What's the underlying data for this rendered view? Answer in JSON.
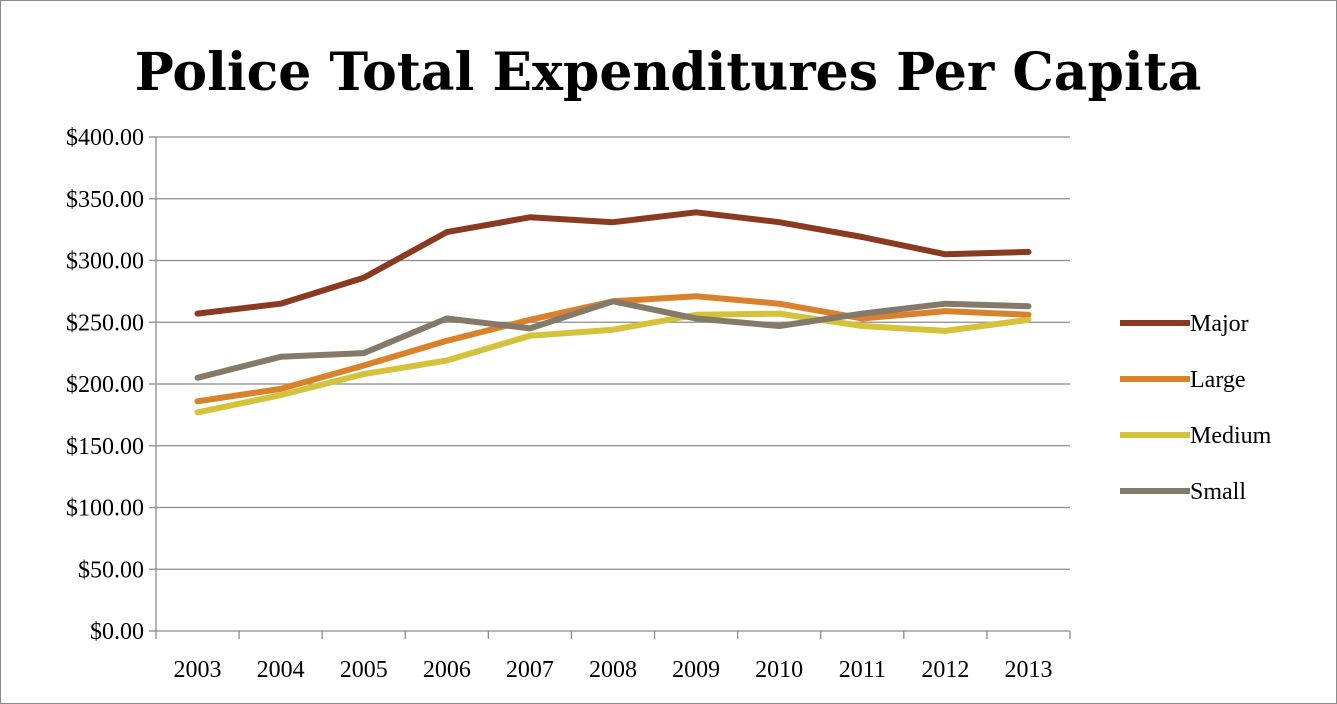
{
  "chart_data": {
    "type": "line",
    "title": "Police Total Expenditures Per Capita",
    "xlabel": "",
    "ylabel": "",
    "categories": [
      "2003",
      "2004",
      "2005",
      "2006",
      "2007",
      "2008",
      "2009",
      "2010",
      "2011",
      "2012",
      "2013"
    ],
    "ylim": [
      0,
      400
    ],
    "yticks": [
      0,
      50,
      100,
      150,
      200,
      250,
      300,
      350,
      400
    ],
    "ytick_labels": [
      "$0.00",
      "$50.00",
      "$100.00",
      "$150.00",
      "$200.00",
      "$250.00",
      "$300.00",
      "$350.00",
      "$400.00"
    ],
    "grid": "horizontal",
    "legend_position": "right",
    "series": [
      {
        "name": "Major",
        "color": "#8b3a22",
        "values": [
          257,
          265,
          286,
          323,
          335,
          331,
          339,
          331,
          319,
          305,
          307
        ]
      },
      {
        "name": "Large",
        "color": "#d9822b",
        "values": [
          186,
          196,
          215,
          235,
          252,
          267,
          271,
          265,
          253,
          259,
          256
        ]
      },
      {
        "name": "Medium",
        "color": "#d4c23a",
        "values": [
          177,
          191,
          208,
          219,
          239,
          244,
          256,
          257,
          247,
          243,
          252
        ]
      },
      {
        "name": "Small",
        "color": "#857a6a",
        "values": [
          205,
          222,
          225,
          253,
          245,
          267,
          253,
          247,
          257,
          265,
          263
        ]
      }
    ]
  }
}
